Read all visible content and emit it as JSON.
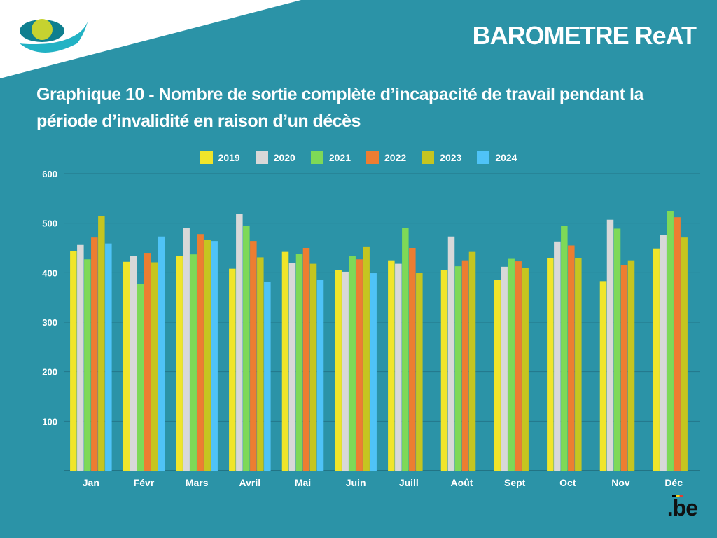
{
  "header": {
    "brand_title": "BAROMETRE ReAT",
    "logo_icon": "inami-eye-logo-icon",
    "footer_logo": ".be"
  },
  "colors": {
    "background": "#2b93a7",
    "corner": "#ffffff",
    "grid": "#23778a",
    "axis": "#1f6a7a"
  },
  "chart_data": {
    "type": "bar",
    "title": "Graphique 10  - Nombre de sortie complète d’incapacité de travail pendant la période d’invalidité en raison d’un décès",
    "xlabel": "",
    "ylabel": "",
    "ylim": [
      0,
      600
    ],
    "yticks": [
      100,
      200,
      300,
      400,
      500,
      600
    ],
    "grid": true,
    "legend_position": "top-center",
    "categories": [
      "Jan",
      "Févr",
      "Mars",
      "Avril",
      "Mai",
      "Juin",
      "Juill",
      "Août",
      "Sept",
      "Oct",
      "Nov",
      "Déc"
    ],
    "series": [
      {
        "name": "2019",
        "color": "#f0e52a",
        "values": [
          443,
          422,
          434,
          408,
          442,
          406,
          425,
          405,
          386,
          430,
          383,
          449
        ]
      },
      {
        "name": "2020",
        "color": "#d8d8d8",
        "values": [
          456,
          434,
          491,
          519,
          420,
          402,
          418,
          473,
          412,
          463,
          507,
          476
        ]
      },
      {
        "name": "2021",
        "color": "#7ed957",
        "values": [
          427,
          377,
          437,
          494,
          438,
          433,
          490,
          413,
          428,
          495,
          489,
          525
        ]
      },
      {
        "name": "2022",
        "color": "#ed7d31",
        "values": [
          471,
          440,
          478,
          464,
          450,
          427,
          450,
          425,
          423,
          455,
          415,
          512
        ]
      },
      {
        "name": "2023",
        "color": "#c5c520",
        "values": [
          514,
          421,
          467,
          431,
          418,
          453,
          400,
          442,
          410,
          430,
          425,
          471
        ]
      },
      {
        "name": "2024",
        "color": "#4fc3f7",
        "values": [
          459,
          473,
          464,
          381,
          385,
          399,
          null,
          null,
          null,
          null,
          null,
          null
        ]
      }
    ]
  }
}
